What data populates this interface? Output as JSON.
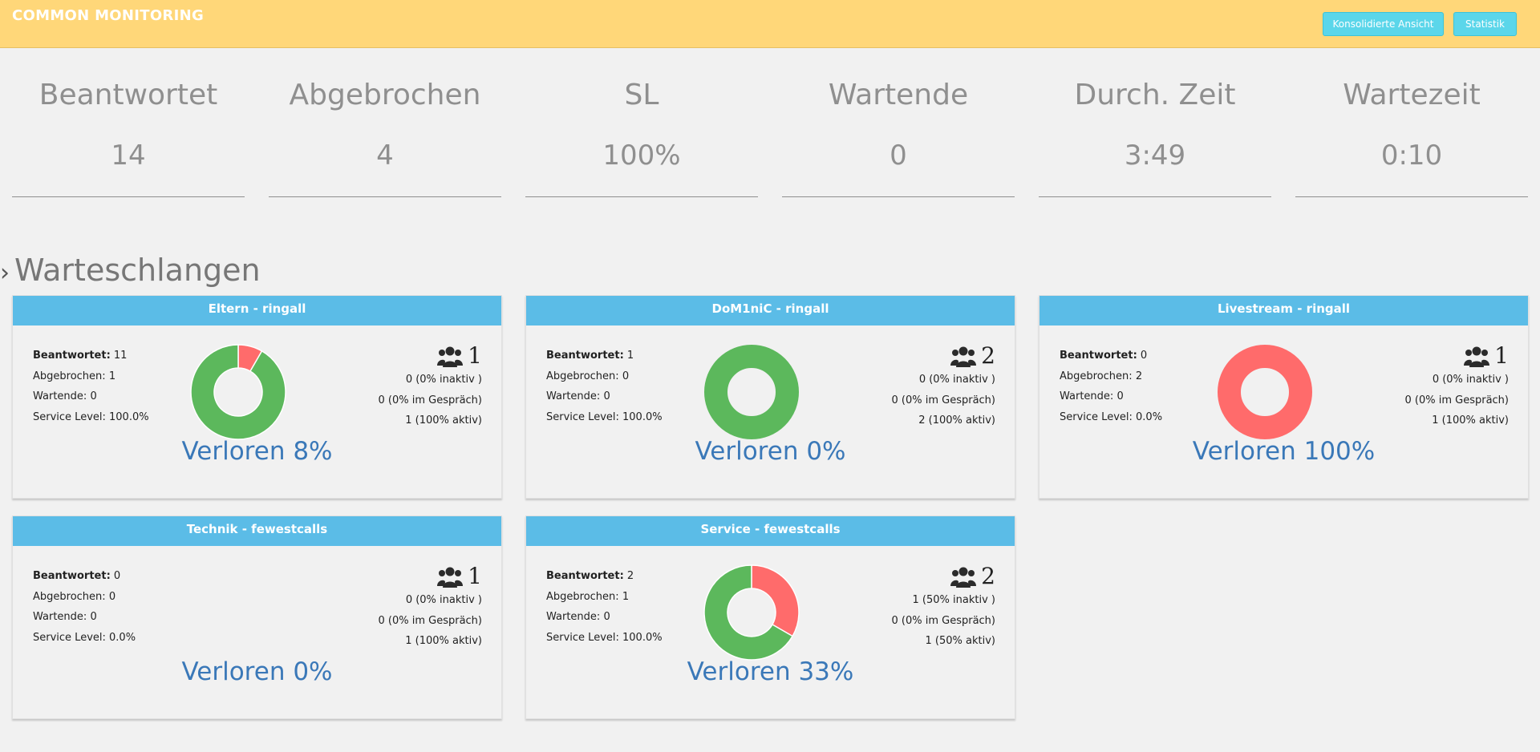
{
  "header": {
    "title": "COMMON MONITORING",
    "buttons": [
      "Konsolidierte Ansicht",
      "Statistik"
    ]
  },
  "stats": [
    {
      "label": "Beantwortet",
      "value": "14"
    },
    {
      "label": "Abgebrochen",
      "value": "4"
    },
    {
      "label": "SL",
      "value": "100%"
    },
    {
      "label": "Wartende",
      "value": "0"
    },
    {
      "label": "Durch. Zeit",
      "value": "3:49"
    },
    {
      "label": "Wartezeit",
      "value": "0:10"
    }
  ],
  "section": {
    "title": "Warteschlangen"
  },
  "labels": {
    "answered": "Beantwortet:",
    "aborted": "Abgebrochen:",
    "waiting": "Wartende:",
    "service_level": "Service Level:"
  },
  "colors": {
    "answered": "#5cb85c",
    "aborted": "#ff6b6b",
    "accent": "#5bbce7"
  },
  "queues": [
    {
      "title": "Eltern - ringall",
      "answered": "11",
      "aborted": "1",
      "waiting": "0",
      "service_level": "100.0%",
      "agents": "1",
      "inactive": "0 (0% inaktiv )",
      "in_call": "0 (0% im Gespräch)",
      "active": "1 (100% aktiv)",
      "lost": "Verloren 8%"
    },
    {
      "title": "DoM1niC - ringall",
      "answered": "1",
      "aborted": "0",
      "waiting": "0",
      "service_level": "100.0%",
      "agents": "2",
      "inactive": "0 (0% inaktiv )",
      "in_call": "0 (0% im Gespräch)",
      "active": "2 (100% aktiv)",
      "lost": "Verloren 0%"
    },
    {
      "title": "Livestream - ringall",
      "answered": "0",
      "aborted": "2",
      "waiting": "0",
      "service_level": "0.0%",
      "agents": "1",
      "inactive": "0 (0% inaktiv )",
      "in_call": "0 (0% im Gespräch)",
      "active": "1 (100% aktiv)",
      "lost": "Verloren 100%"
    },
    {
      "title": "Technik - fewestcalls",
      "answered": "0",
      "aborted": "0",
      "waiting": "0",
      "service_level": "0.0%",
      "agents": "1",
      "inactive": "0 (0% inaktiv )",
      "in_call": "0 (0% im Gespräch)",
      "active": "1 (100% aktiv)",
      "lost": "Verloren 0%"
    },
    {
      "title": "Service - fewestcalls",
      "answered": "2",
      "aborted": "1",
      "waiting": "0",
      "service_level": "100.0%",
      "agents": "2",
      "inactive": "1 (50% inaktiv )",
      "in_call": "0 (0% im Gespräch)",
      "active": "1 (50% aktiv)",
      "lost": "Verloren 33%"
    }
  ]
}
